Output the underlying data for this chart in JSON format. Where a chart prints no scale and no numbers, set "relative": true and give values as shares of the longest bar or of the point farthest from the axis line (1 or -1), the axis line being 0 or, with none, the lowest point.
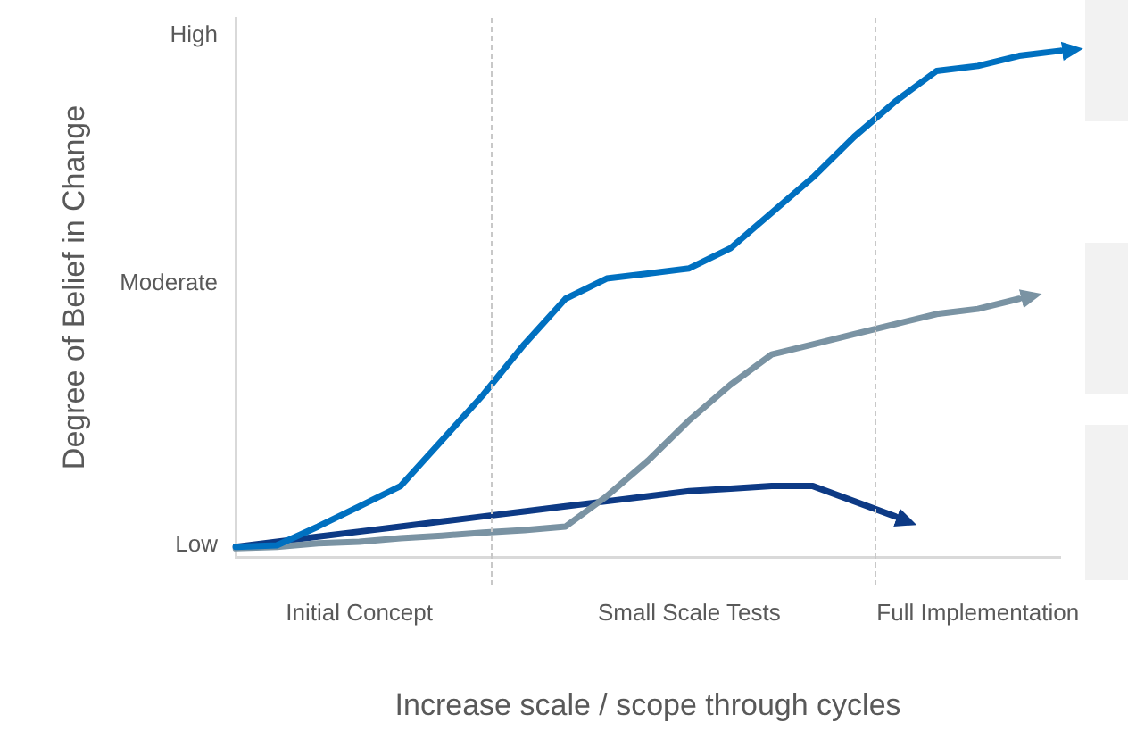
{
  "chart_data": {
    "type": "line",
    "xlabel": "Increase scale / scope through cycles",
    "ylabel": "Degree of Belief in Change",
    "categories": [
      null,
      null,
      null,
      "Initial Concept",
      null,
      null,
      null,
      null,
      null,
      null,
      null,
      "Small Scale Tests",
      null,
      null,
      null,
      null,
      null,
      null,
      "Full Implementation",
      null,
      null
    ],
    "relative": true,
    "annotations": [
      "Low",
      "Moderate",
      "High"
    ],
    "series": [
      {
        "color": "#0070c0",
        "values": [
          0.02,
          0.023,
          0.06,
          0.1,
          0.14,
          0.23,
          0.32,
          0.42,
          0.51,
          0.55,
          0.56,
          0.57,
          0.61,
          0.68,
          0.75,
          0.83,
          0.9,
          0.96,
          0.97,
          0.99,
          1
        ]
      },
      {
        "color": "#7a93a3",
        "values": [
          0.017,
          0.02,
          0.027,
          0.03,
          0.037,
          0.042,
          0.048,
          0.053,
          0.06,
          0.12,
          0.19,
          0.27,
          0.34,
          0.4,
          0.42,
          0.44,
          0.46,
          0.48,
          0.49,
          0.51,
          null
        ]
      },
      {
        "color": "#0d3a85",
        "values": [
          0.02,
          0.03,
          0.04,
          0.05,
          0.06,
          0.07,
          0.08,
          0.09,
          0.1,
          0.11,
          0.12,
          0.13,
          0.135,
          0.14,
          0.14,
          0.11,
          0.08,
          null,
          null,
          null,
          null
        ]
      }
    ],
    "grid": false,
    "legend": false,
    "marker": "none",
    "line_style": "solid"
  }
}
